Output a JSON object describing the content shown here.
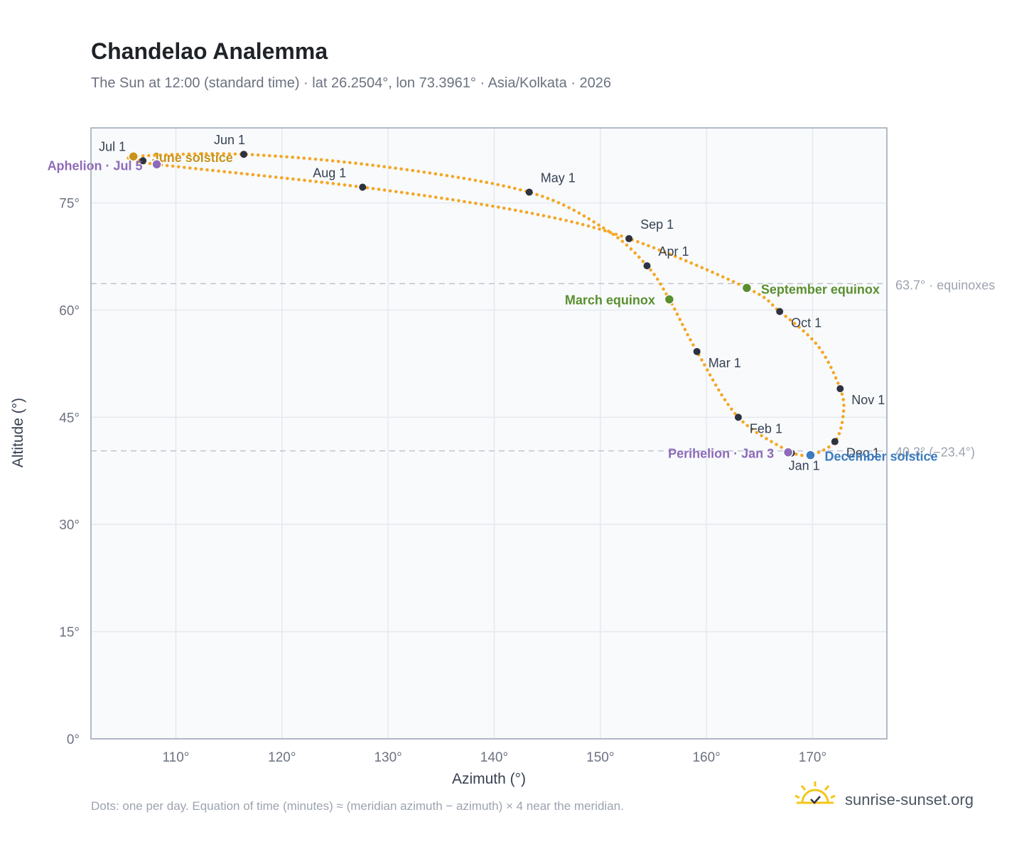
{
  "header": {
    "title": "Chandelao Analemma",
    "subtitle": "The Sun at 12:00 (standard time) · lat 26.2504°, lon 73.3961° · Asia/Kolkata · 2026"
  },
  "footer": {
    "note": "Dots: one per day. Equation of time (minutes) ≈ (meridian azimuth − azimuth) × 4 near the meridian.",
    "brand": "sunrise-sunset.org"
  },
  "colors": {
    "curve": "#f5a623",
    "month_marker": "#2d3340",
    "march_equinox": "#5a8f2e",
    "september_equinox": "#5a8f2e",
    "june_solstice": "#c8941a",
    "december_solstice": "#3b7bbf",
    "perihelion_aphelion": "#8e6bb8",
    "plot_bg": "#f8fafc",
    "grid": "#e5e9ef",
    "reference_line": "#bfc5cd"
  },
  "chart_data": {
    "type": "scatter",
    "title": "Chandelao Analemma",
    "xlabel": "Azimuth (°)",
    "ylabel": "Altitude (°)",
    "xlim": [
      102,
      177
    ],
    "ylim": [
      0,
      85.5
    ],
    "x_ticks": [
      110,
      120,
      130,
      140,
      150,
      160,
      170
    ],
    "x_tick_labels": [
      "110°",
      "120°",
      "130°",
      "140°",
      "150°",
      "160°",
      "170°"
    ],
    "y_ticks": [
      0,
      15,
      30,
      45,
      60,
      75
    ],
    "y_tick_labels": [
      "0°",
      "15°",
      "30°",
      "45°",
      "60°",
      "75°"
    ],
    "grid": true,
    "reference_lines": [
      {
        "y": 63.7,
        "label": "63.7° · equinoxes"
      },
      {
        "y": 40.3,
        "label": "40.3° (−23.4°)"
      }
    ],
    "month_markers": [
      {
        "label": "Jan 1",
        "azimuth": 168.0,
        "altitude": 40.0
      },
      {
        "label": "Feb 1",
        "azimuth": 163.0,
        "altitude": 45.0
      },
      {
        "label": "Mar 1",
        "azimuth": 159.1,
        "altitude": 54.2
      },
      {
        "label": "Apr 1",
        "azimuth": 154.4,
        "altitude": 66.2
      },
      {
        "label": "May 1",
        "azimuth": 143.3,
        "altitude": 76.5
      },
      {
        "label": "Jun 1",
        "azimuth": 116.4,
        "altitude": 81.8
      },
      {
        "label": "Jul 1",
        "azimuth": 106.9,
        "altitude": 80.9
      },
      {
        "label": "Aug 1",
        "azimuth": 127.6,
        "altitude": 77.2
      },
      {
        "label": "Sep 1",
        "azimuth": 152.7,
        "altitude": 70.0
      },
      {
        "label": "Oct 1",
        "azimuth": 166.9,
        "altitude": 59.8
      },
      {
        "label": "Nov 1",
        "azimuth": 172.6,
        "altitude": 49.0
      },
      {
        "label": "Dec 1",
        "azimuth": 172.1,
        "altitude": 41.6
      }
    ],
    "events": [
      {
        "label": "March equinox",
        "azimuth": 156.5,
        "altitude": 61.5
      },
      {
        "label": "September equinox",
        "azimuth": 163.8,
        "altitude": 63.1
      },
      {
        "label": "June solstice",
        "azimuth": 106.0,
        "altitude": 81.5
      },
      {
        "label": "December solstice",
        "azimuth": 169.8,
        "altitude": 39.7
      },
      {
        "label": "Perihelion · Jan 3",
        "azimuth": 167.7,
        "altitude": 40.1
      },
      {
        "label": "Aphelion · Jul 5",
        "azimuth": 108.2,
        "altitude": 80.4
      }
    ],
    "path": [
      {
        "azimuth": 168.0,
        "altitude": 40.0
      },
      {
        "azimuth": 163.0,
        "altitude": 45.0
      },
      {
        "azimuth": 159.1,
        "altitude": 54.2
      },
      {
        "azimuth": 156.5,
        "altitude": 61.5
      },
      {
        "azimuth": 154.4,
        "altitude": 66.2
      },
      {
        "azimuth": 150.5,
        "altitude": 71.3
      },
      {
        "azimuth": 143.3,
        "altitude": 76.5
      },
      {
        "azimuth": 130.0,
        "altitude": 80.0
      },
      {
        "azimuth": 116.4,
        "altitude": 81.8
      },
      {
        "azimuth": 106.0,
        "altitude": 81.5
      },
      {
        "azimuth": 106.9,
        "altitude": 80.9
      },
      {
        "azimuth": 108.2,
        "altitude": 80.4
      },
      {
        "azimuth": 127.6,
        "altitude": 77.2
      },
      {
        "azimuth": 143.0,
        "altitude": 73.7
      },
      {
        "azimuth": 152.7,
        "altitude": 70.0
      },
      {
        "azimuth": 163.8,
        "altitude": 63.1
      },
      {
        "azimuth": 166.9,
        "altitude": 59.8
      },
      {
        "azimuth": 170.5,
        "altitude": 55.0
      },
      {
        "azimuth": 172.6,
        "altitude": 49.0
      },
      {
        "azimuth": 172.9,
        "altitude": 45.5
      },
      {
        "azimuth": 172.1,
        "altitude": 41.6
      },
      {
        "azimuth": 169.8,
        "altitude": 39.7
      },
      {
        "azimuth": 168.0,
        "altitude": 40.0
      }
    ]
  }
}
